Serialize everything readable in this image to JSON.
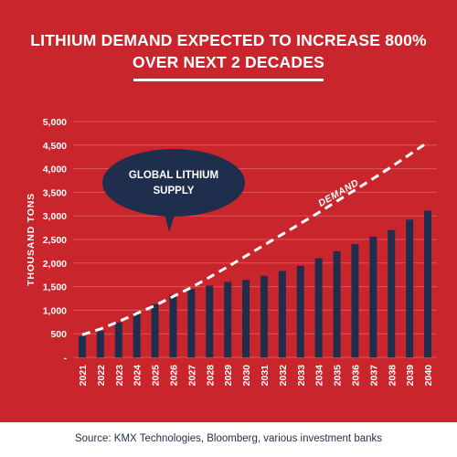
{
  "title_lines": [
    "LITHIUM DEMAND EXPECTED TO INCREASE 800%",
    "OVER NEXT 2 DECADES"
  ],
  "source": "Source: KMX Technologies, Bloomberg, various investment banks",
  "colors": {
    "background": "#c8262c",
    "bar": "#1f2e4d",
    "text": "#ffffff",
    "grid": "#d9575c"
  },
  "chart_data": {
    "type": "bar",
    "title": "LITHIUM DEMAND EXPECTED TO INCREASE 800% OVER NEXT 2 DECADES",
    "ylabel": "THOUSAND TONS",
    "xlabel": "",
    "ylim": [
      0,
      5000
    ],
    "y_ticks": [
      "-",
      "500",
      "1,000",
      "1,500",
      "2,000",
      "2,500",
      "3,000",
      "3,500",
      "4,000",
      "4,500",
      "5,000"
    ],
    "grid": true,
    "categories": [
      "2021",
      "2022",
      "2023",
      "2024",
      "2025",
      "2026",
      "2027",
      "2028",
      "2029",
      "2030",
      "2031",
      "2032",
      "2033",
      "2034",
      "2035",
      "2036",
      "2037",
      "2038",
      "2039",
      "2040"
    ],
    "series": [
      {
        "type": "bar",
        "values": [
          450,
          560,
          740,
          960,
          1130,
          1330,
          1450,
          1520,
          1600,
          1640,
          1730,
          1830,
          1940,
          2100,
          2250,
          2400,
          2560,
          2700,
          2920,
          3110
        ]
      },
      {
        "type": "line",
        "style": "dashed",
        "values": [
          480,
          600,
          760,
          930,
          1100,
          1290,
          1480,
          1700,
          1920,
          2150,
          2380,
          2610,
          2840,
          3070,
          3310,
          3550,
          3790,
          4040,
          4300,
          4560
        ]
      }
    ],
    "annotations": [
      {
        "text": "DEMAND",
        "target": "line"
      },
      {
        "text": "GLOBAL LITHIUM SUPPLY",
        "target": "bars"
      }
    ],
    "bubble_lines": [
      "GLOBAL LITHIUM",
      "SUPPLY"
    ]
  }
}
